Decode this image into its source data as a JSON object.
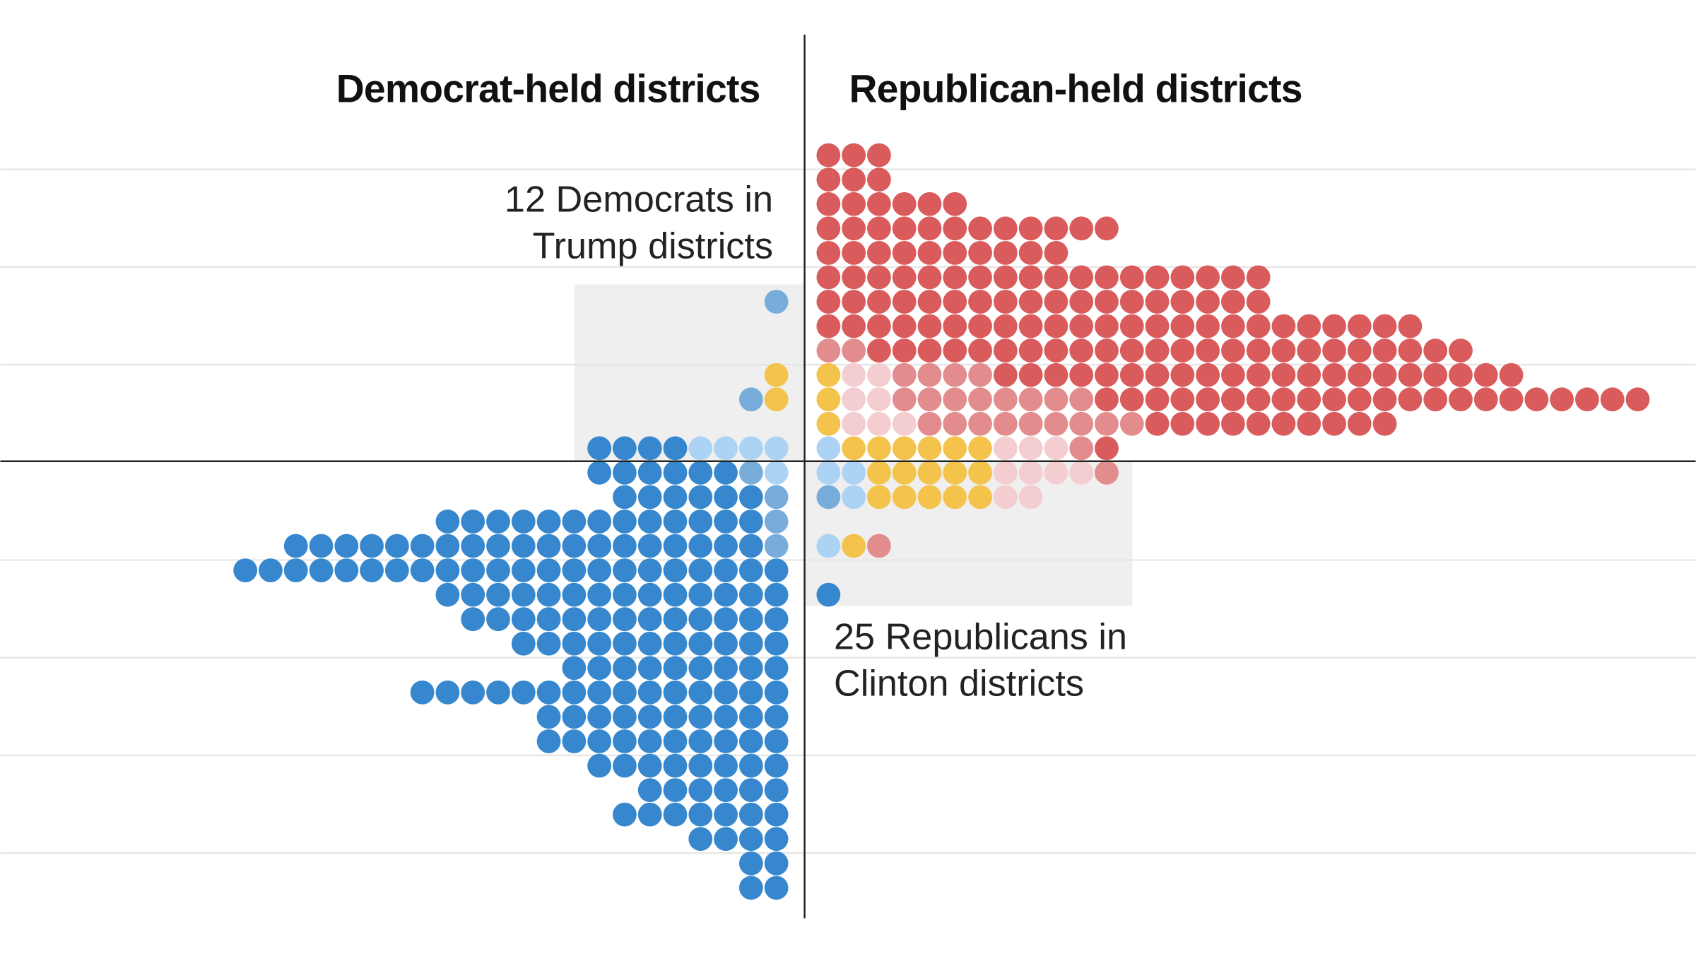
{
  "chart_data": {
    "type": "dot-matrix",
    "headings": {
      "left": "Democrat-held districts",
      "right": "Republican-held districts"
    },
    "annotations": {
      "dem_line1": "12 Democrats in",
      "dem_line2": "Trump districts",
      "rep_line1": "25 Republicans in",
      "rep_line2": "Clinton districts"
    },
    "grid": true,
    "colors": {
      "red": "#d95b5c",
      "medium_red": "#e38c8e",
      "pale_red": "#f4cdd1",
      "yellow": "#f3c34b",
      "blue": "#3687cd",
      "medium_blue": "#78acdb",
      "light_blue": "#acd3f3",
      "highlight_box": "#efefef"
    },
    "rows_top_to_bottom": [
      {
        "left": [],
        "right": [
          [
            "red",
            3
          ]
        ]
      },
      {
        "left": [],
        "right": [
          [
            "red",
            3
          ]
        ]
      },
      {
        "left": [],
        "right": [
          [
            "red",
            6
          ]
        ]
      },
      {
        "left": [],
        "right": [
          [
            "red",
            12
          ]
        ]
      },
      {
        "left": [],
        "right": [
          [
            "red",
            10
          ]
        ]
      },
      {
        "left": [],
        "right": [
          [
            "red",
            18
          ]
        ]
      },
      {
        "left": [
          [
            "medium_blue",
            1
          ]
        ],
        "right": [
          [
            "red",
            18
          ]
        ]
      },
      {
        "left": [],
        "right": [
          [
            "red",
            24
          ]
        ]
      },
      {
        "left": [],
        "right": [
          [
            "medium_red",
            2
          ],
          [
            "red",
            24
          ]
        ]
      },
      {
        "left": [
          [
            "yellow",
            1
          ]
        ],
        "right": [
          [
            "yellow",
            1
          ],
          [
            "pale_red",
            2
          ],
          [
            "medium_red",
            4
          ],
          [
            "red",
            21
          ]
        ]
      },
      {
        "left": [
          [
            "yellow",
            1
          ],
          [
            "medium_blue",
            1
          ]
        ],
        "right": [
          [
            "yellow",
            1
          ],
          [
            "pale_red",
            2
          ],
          [
            "medium_red",
            8
          ],
          [
            "red",
            22
          ]
        ]
      },
      {
        "left": [],
        "right": [
          [
            "yellow",
            1
          ],
          [
            "pale_red",
            3
          ],
          [
            "medium_red",
            9
          ],
          [
            "red",
            10
          ]
        ]
      },
      {
        "left": [
          [
            "light_blue",
            4
          ],
          [
            "blue",
            4
          ]
        ],
        "right": [
          [
            "light_blue",
            1
          ],
          [
            "yellow",
            6
          ],
          [
            "pale_red",
            3
          ],
          [
            "medium_red",
            1
          ],
          [
            "red",
            1
          ]
        ]
      },
      {
        "left": [
          [
            "light_blue",
            1
          ],
          [
            "medium_blue",
            1
          ],
          [
            "blue",
            6
          ]
        ],
        "right": [
          [
            "light_blue",
            2
          ],
          [
            "yellow",
            5
          ],
          [
            "pale_red",
            4
          ],
          [
            "medium_red",
            1
          ]
        ]
      },
      {
        "left": [
          [
            "medium_blue",
            1
          ],
          [
            "blue",
            6
          ]
        ],
        "right": [
          [
            "medium_blue",
            1
          ],
          [
            "light_blue",
            1
          ],
          [
            "yellow",
            5
          ],
          [
            "pale_red",
            2
          ]
        ]
      },
      {
        "left": [
          [
            "medium_blue",
            1
          ],
          [
            "blue",
            13
          ]
        ],
        "right": []
      },
      {
        "left": [
          [
            "medium_blue",
            1
          ],
          [
            "blue",
            19
          ]
        ],
        "right": [
          [
            "light_blue",
            1
          ],
          [
            "yellow",
            1
          ],
          [
            "medium_red",
            1
          ]
        ]
      },
      {
        "left": [
          [
            "blue",
            22
          ]
        ],
        "right": []
      },
      {
        "left": [
          [
            "blue",
            14
          ]
        ],
        "right": [
          [
            "blue",
            1
          ]
        ]
      },
      {
        "left": [
          [
            "blue",
            13
          ]
        ],
        "right": []
      },
      {
        "left": [
          [
            "blue",
            11
          ]
        ],
        "right": []
      },
      {
        "left": [
          [
            "blue",
            9
          ]
        ],
        "right": []
      },
      {
        "left": [
          [
            "blue",
            15
          ]
        ],
        "right": []
      },
      {
        "left": [
          [
            "blue",
            10
          ]
        ],
        "right": []
      },
      {
        "left": [
          [
            "blue",
            10
          ]
        ],
        "right": []
      },
      {
        "left": [
          [
            "blue",
            8
          ]
        ],
        "right": []
      },
      {
        "left": [
          [
            "blue",
            6
          ]
        ],
        "right": []
      },
      {
        "left": [
          [
            "blue",
            7
          ]
        ],
        "right": []
      },
      {
        "left": [
          [
            "blue",
            4
          ]
        ],
        "right": []
      },
      {
        "left": [
          [
            "blue",
            2
          ]
        ],
        "right": []
      },
      {
        "left": [
          [
            "blue",
            2
          ]
        ],
        "right": []
      }
    ]
  }
}
